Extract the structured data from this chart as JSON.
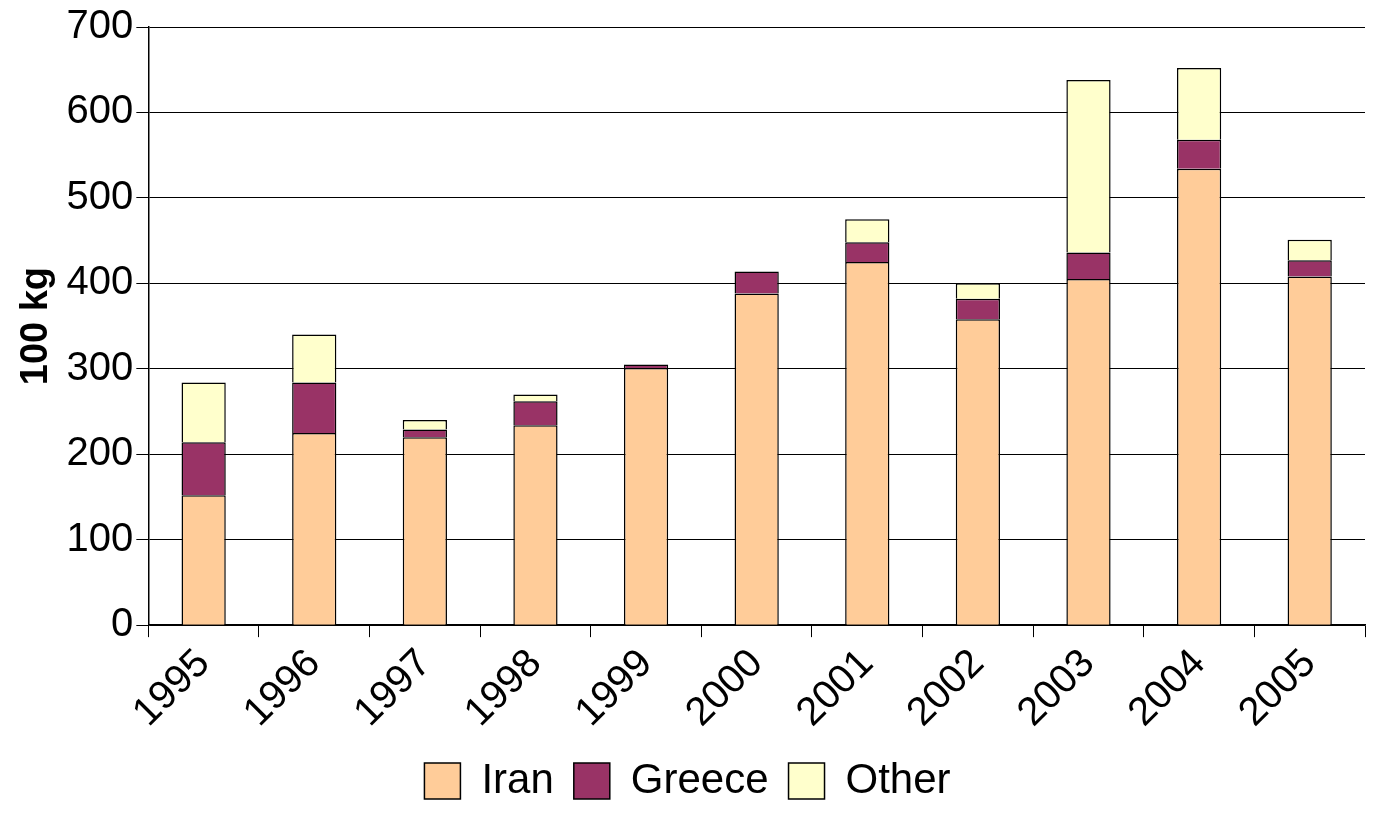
{
  "chart_data": {
    "type": "bar",
    "stacked": true,
    "ylabel": "100 kg",
    "categories": [
      "1995",
      "1996",
      "1997",
      "1998",
      "1999",
      "2000",
      "2001",
      "2002",
      "2003",
      "2004",
      "2005"
    ],
    "series": [
      {
        "name": "Iran",
        "color": "#ffcc99",
        "values": [
          152,
          225,
          220,
          234,
          301,
          388,
          425,
          358,
          405,
          534,
          408
        ]
      },
      {
        "name": "Greece",
        "color": "#993366",
        "values": [
          62,
          59,
          9,
          28,
          4,
          26,
          23,
          24,
          31,
          34,
          19
        ]
      },
      {
        "name": "Other",
        "color": "#ffffcc",
        "values": [
          70,
          56,
          11,
          8,
          0,
          0,
          27,
          18,
          202,
          84,
          24
        ]
      }
    ],
    "ylim": [
      0,
      700
    ],
    "yticks": [
      0,
      100,
      200,
      300,
      400,
      500,
      600,
      700
    ],
    "grid": "y",
    "legend": "bottom"
  }
}
